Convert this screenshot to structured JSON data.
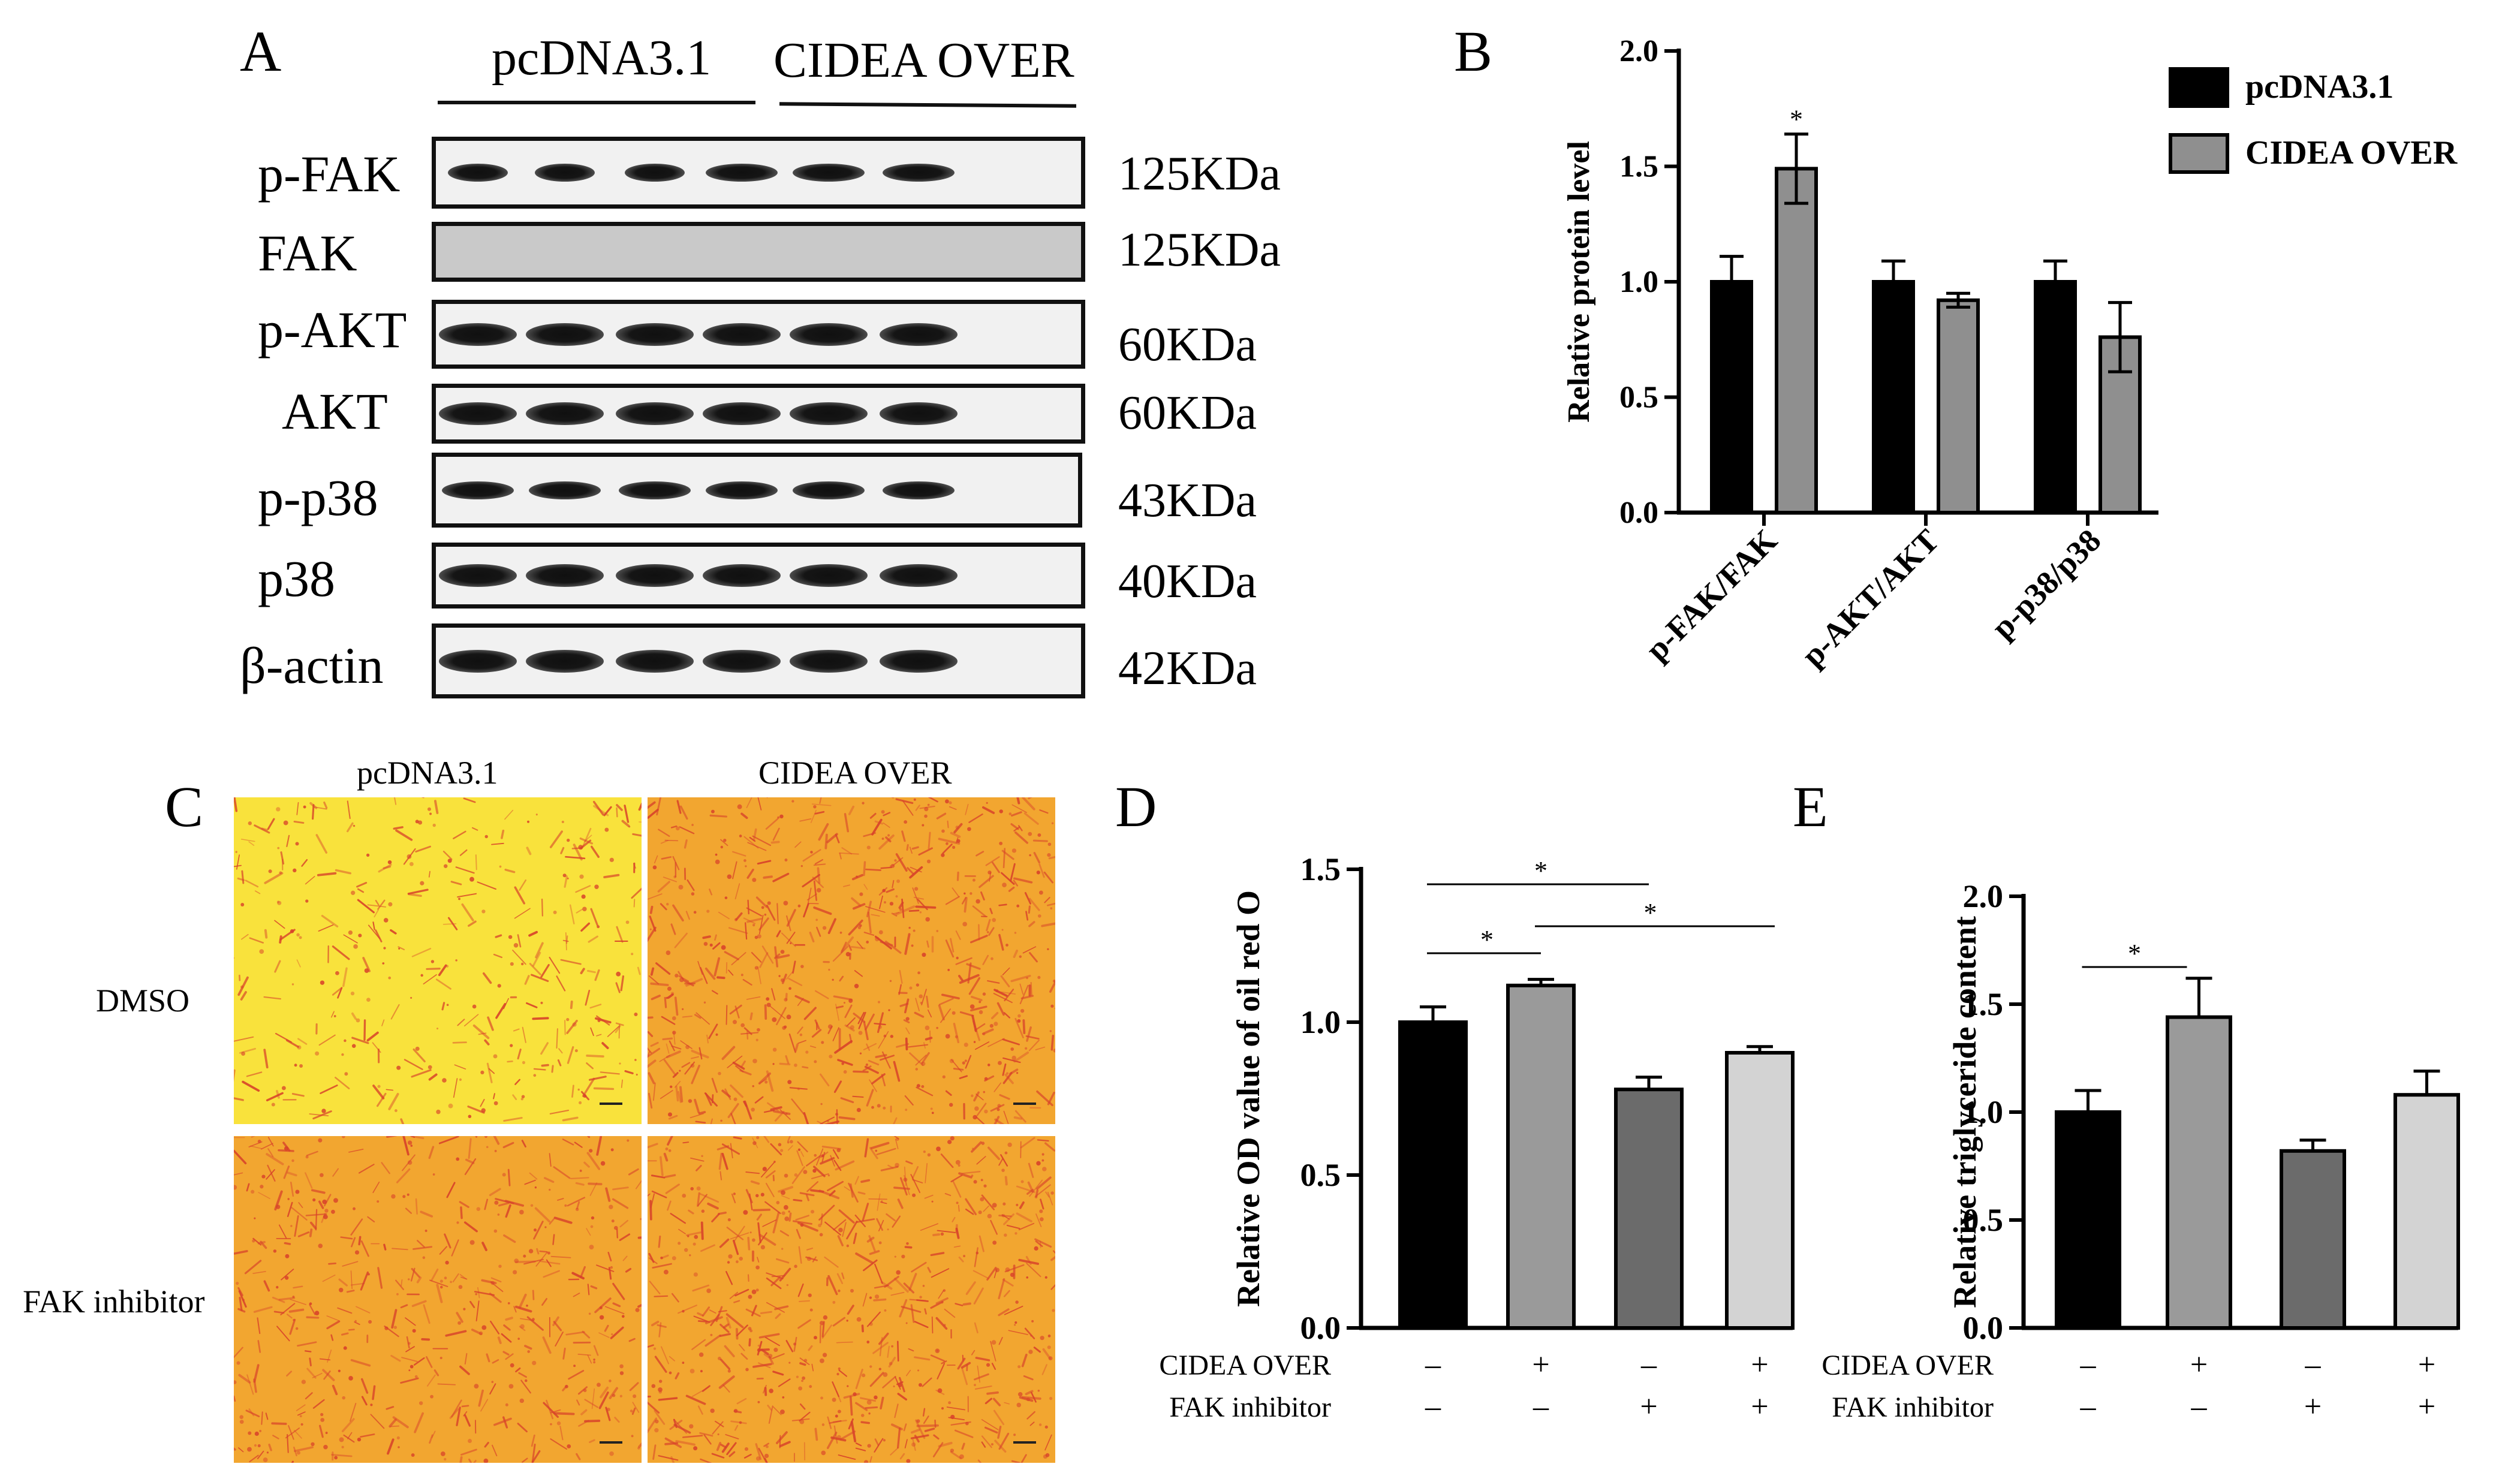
{
  "panels": {
    "a": {
      "letter": "A",
      "groups": [
        "pcDNA3.1",
        "CIDEA OVER"
      ],
      "rows": [
        {
          "protein": "p-FAK",
          "mw": "125KDa"
        },
        {
          "protein": "FAK",
          "mw": "125KDa"
        },
        {
          "protein": "p-AKT",
          "mw": "60KDa"
        },
        {
          "protein": "AKT",
          "mw": "60KDa"
        },
        {
          "protein": "p-p38",
          "mw": "43KDa"
        },
        {
          "protein": "p38",
          "mw": "40KDa"
        },
        {
          "protein": "β-actin",
          "mw": "42KDa"
        }
      ]
    },
    "b": {
      "letter": "B"
    },
    "c": {
      "letter": "C",
      "columns": [
        "pcDNA3.1",
        "CIDEA OVER"
      ],
      "rows": [
        "DMSO",
        "FAK inhibitor"
      ],
      "colors": {
        "light_yellow": "#f9e23c",
        "orange": "#f2a630",
        "stain": "#d8422a"
      }
    },
    "d": {
      "letter": "D",
      "conditions": [
        {
          "label": "CIDEA OVER",
          "values": [
            "–",
            "+",
            "–",
            "+"
          ]
        },
        {
          "label": "FAK inhibitor",
          "values": [
            "–",
            "–",
            "+",
            "+"
          ]
        }
      ]
    },
    "e": {
      "letter": "E",
      "conditions": [
        {
          "label": "CIDEA OVER",
          "values": [
            "–",
            "+",
            "–",
            "+"
          ]
        },
        {
          "label": "FAK inhibitor",
          "values": [
            "–",
            "–",
            "+",
            "+"
          ]
        }
      ]
    }
  },
  "chart_data": [
    {
      "id": "B",
      "type": "bar",
      "ylabel": "Relative protein level",
      "categories": [
        "p-FAK/FAK",
        "p-AKT/AKT",
        "p-p38/p38"
      ],
      "series": [
        {
          "name": "pcDNA3.1",
          "values": [
            1.0,
            1.0,
            1.0
          ],
          "errors": [
            0.11,
            0.09,
            0.09
          ],
          "color": "#000000"
        },
        {
          "name": "CIDEA OVER",
          "values": [
            1.49,
            0.92,
            0.76
          ],
          "errors": [
            0.15,
            0.03,
            0.15
          ],
          "color": "#8f8f8f"
        }
      ],
      "ylim": [
        0,
        2.0
      ],
      "yticks": [
        "0.0",
        "0.5",
        "1.0",
        "1.5",
        "2.0"
      ],
      "significance": [
        {
          "category": 0,
          "series": 1,
          "label": "*"
        }
      ],
      "legend": "top-right"
    },
    {
      "id": "D",
      "type": "bar",
      "ylabel": "Relative OD value of oil red O",
      "values": [
        1.0,
        1.12,
        0.78,
        0.9
      ],
      "errors": [
        0.05,
        0.02,
        0.04,
        0.02
      ],
      "colors": [
        "#000000",
        "#9a9a9a",
        "#6b6b6b",
        "#d3d3d3"
      ],
      "ylim": [
        0,
        1.5
      ],
      "yticks": [
        "0.0",
        "0.5",
        "1.0",
        "1.5"
      ],
      "significance": [
        {
          "from": 0,
          "to": 2,
          "label": "*"
        },
        {
          "from": 0,
          "to": 1,
          "label": "*"
        },
        {
          "from": 1,
          "to": 3,
          "label": "*"
        }
      ]
    },
    {
      "id": "E",
      "type": "bar",
      "ylabel": "Relative triglyceride content",
      "values": [
        1.0,
        1.44,
        0.82,
        1.08
      ],
      "errors": [
        0.1,
        0.18,
        0.05,
        0.11
      ],
      "colors": [
        "#000000",
        "#9a9a9a",
        "#6b6b6b",
        "#d3d3d3"
      ],
      "ylim": [
        0,
        2.0
      ],
      "yticks": [
        "0.0",
        "0.5",
        "1.0",
        "1.5",
        "2.0"
      ],
      "significance": [
        {
          "from": 0,
          "to": 1,
          "label": "*"
        }
      ]
    }
  ]
}
